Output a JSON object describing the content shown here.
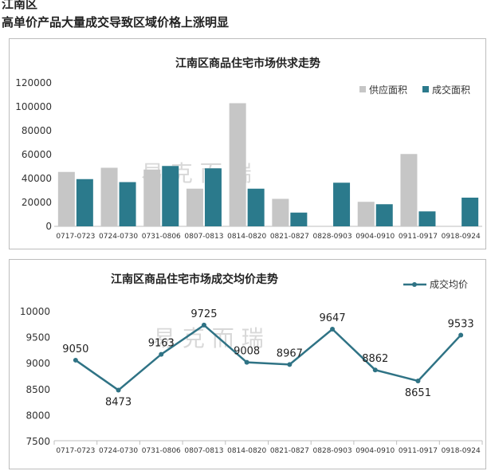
{
  "heading": {
    "line1": "江南区",
    "line2": "高单价产品大量成交导致区域价格上涨明显"
  },
  "watermark": "易 克 而 瑞",
  "colors": {
    "supply": "#c6c6c6",
    "deal": "#2b7a8c",
    "line": "#2f7385"
  },
  "chart_data": [
    {
      "type": "bar",
      "title": "江南区商品住宅市场供求走势",
      "categories": [
        "0717-0723",
        "0724-0730",
        "0731-0806",
        "0807-0813",
        "0814-0820",
        "0821-0827",
        "0828-0903",
        "0904-0910",
        "0911-0917",
        "0918-0924"
      ],
      "series": [
        {
          "name": "供应面积",
          "values": [
            45500,
            49000,
            47500,
            31500,
            103000,
            23000,
            0,
            20500,
            60500,
            0
          ]
        },
        {
          "name": "成交面积",
          "values": [
            39500,
            37000,
            50500,
            48500,
            31500,
            11500,
            36500,
            18500,
            12500,
            24000
          ]
        }
      ],
      "yticks": [
        "0",
        "20000",
        "40000",
        "60000",
        "80000",
        "100000",
        "120000"
      ],
      "ylim": [
        0,
        120000
      ],
      "legend": "top-right",
      "grid": false
    },
    {
      "type": "line",
      "title": "江南区商品住宅市场成交均价走势",
      "categories": [
        "0717-0723",
        "0724-0730",
        "0731-0806",
        "0807-0813",
        "0814-0820",
        "0821-0827",
        "0828-0903",
        "0904-0910",
        "0911-0917",
        "0918-0924"
      ],
      "series": [
        {
          "name": "成交均价",
          "values": [
            9050,
            8473,
            9163,
            9725,
            9008,
            8967,
            9647,
            8862,
            8651,
            9533
          ]
        }
      ],
      "data_labels": [
        "9050",
        "8473",
        "9163",
        "9725",
        "9008",
        "8967",
        "9647",
        "8862",
        "8651",
        "9533"
      ],
      "yticks": [
        "7500",
        "8000",
        "8500",
        "9000",
        "9500",
        "10000"
      ],
      "ylim": [
        7500,
        10000
      ],
      "legend": "top-right",
      "grid": false
    }
  ]
}
